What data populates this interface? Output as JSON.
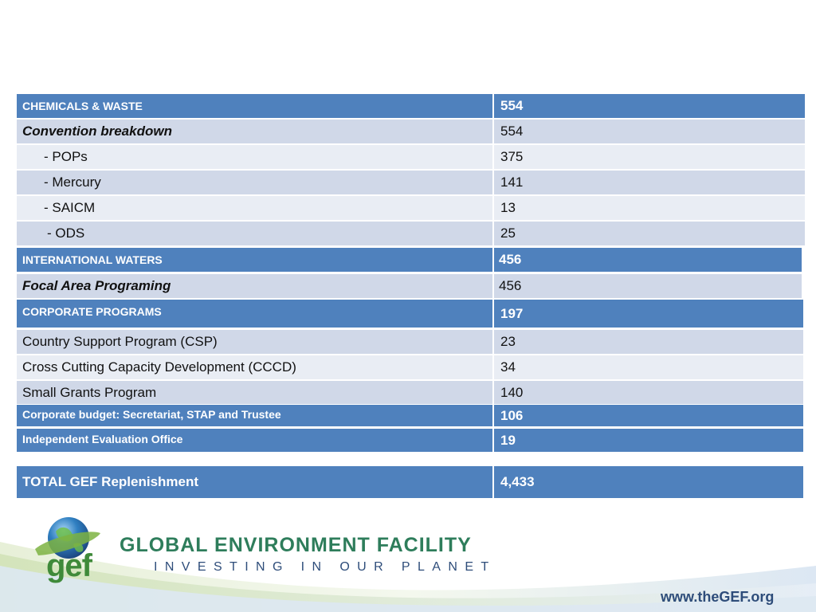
{
  "rows": [
    {
      "label": "CHEMICALS & WASTE",
      "value": "554"
    },
    {
      "label": "Convention breakdown",
      "value": "554"
    },
    {
      "label": "- POPs",
      "value": "375"
    },
    {
      "label": "- Mercury",
      "value": "141"
    },
    {
      "label": "- SAICM",
      "value": "13"
    },
    {
      "label": "- ODS",
      "value": "25"
    },
    {
      "label": "INTERNATIONAL WATERS",
      "value": "456"
    },
    {
      "label": "Focal Area Programing",
      "value": "456"
    },
    {
      "label": "CORPORATE PROGRAMS",
      "value": "197"
    },
    {
      "label": "Country Support Program (CSP)",
      "value": "23"
    },
    {
      "label": "Cross Cutting Capacity Development (CCCD)",
      "value": "34"
    },
    {
      "label": "Small Grants Program",
      "value": "140"
    },
    {
      "label": "Corporate budget: Secretariat, STAP and Trustee",
      "value": "106"
    },
    {
      "label": "Independent Evaluation Office",
      "value": "19"
    },
    {
      "label": "TOTAL GEF Replenishment",
      "value": "4,433"
    }
  ],
  "footer": {
    "logo_text": "gef",
    "org_name": "GLOBAL ENVIRONMENT FACILITY",
    "tagline": "INVESTING IN OUR PLANET",
    "url": "www.theGEF.org"
  },
  "colors": {
    "header": "#4f81bd",
    "band_dark": "#d0d8e8",
    "band_light": "#e9edf4",
    "brand_green": "#2e7d5b",
    "brand_blue": "#2e4d7a"
  }
}
